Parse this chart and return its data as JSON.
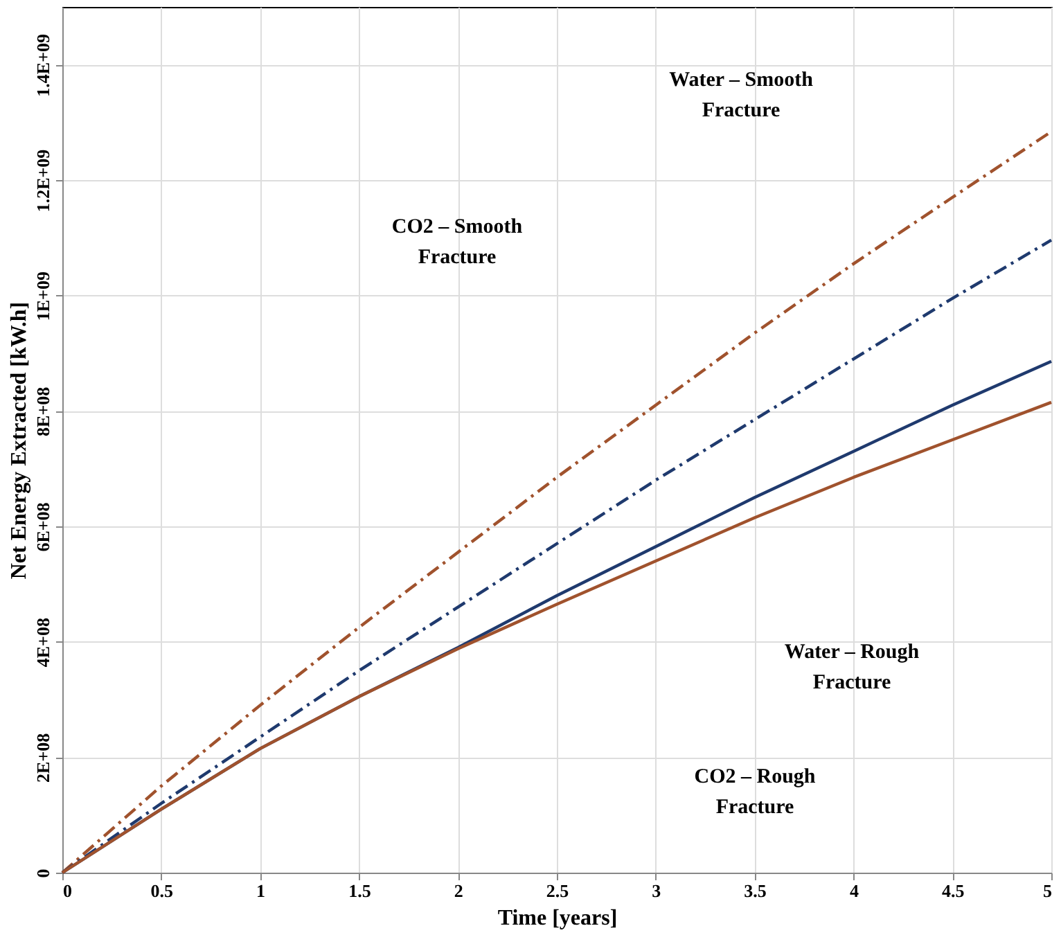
{
  "chart_data": {
    "type": "line",
    "xlabel": "Time [years]",
    "ylabel": "Net Energy Extracted [kW.h]",
    "x": [
      0,
      0.5,
      1,
      1.5,
      2,
      2.5,
      3,
      3.5,
      4,
      4.5,
      5
    ],
    "series": [
      {
        "color": "#a0522d",
        "line_style": "dashed",
        "values": [
          0,
          150000000,
          290000000,
          425000000,
          555000000,
          685000000,
          810000000,
          935000000,
          1055000000,
          1170000000,
          1284000000
        ]
      },
      {
        "color": "#1f3a6e",
        "line_style": "dashed",
        "values": [
          0,
          120000000,
          235000000,
          350000000,
          460000000,
          570000000,
          680000000,
          785000000,
          890000000,
          995000000,
          1096000000
        ]
      },
      {
        "color": "#1f3a6e",
        "line_style": "solid",
        "values": [
          0,
          110000000,
          215000000,
          305000000,
          390000000,
          480000000,
          565000000,
          650000000,
          730000000,
          810000000,
          886000000
        ]
      },
      {
        "color": "#a0522d",
        "line_style": "solid",
        "values": [
          0,
          110000000,
          215000000,
          305000000,
          388000000,
          465000000,
          540000000,
          615000000,
          685000000,
          750000000,
          815000000
        ]
      }
    ],
    "xlim": [
      0,
      5
    ],
    "xticks": [
      0,
      0.5,
      1,
      1.5,
      2,
      2.5,
      3,
      3.5,
      4,
      4.5,
      5
    ],
    "ylim": [
      0,
      1500000000
    ],
    "yticks": [
      {
        "value": 0,
        "label": "0"
      },
      {
        "value": 200000000,
        "label": "2E+08"
      },
      {
        "value": 400000000,
        "label": "4E+08"
      },
      {
        "value": 600000000,
        "label": "6E+08"
      },
      {
        "value": 800000000,
        "label": "8E+08"
      },
      {
        "value": 1000000000,
        "label": "1E+09"
      },
      {
        "value": 1200000000,
        "label": "1.2E+09"
      },
      {
        "value": 1400000000,
        "label": "1.4E+09"
      }
    ],
    "annotations": [
      "Water – Smooth Fracture",
      "CO2 – Smooth Fracture",
      "Water – Rough Fracture",
      "CO2 – Rough Fracture"
    ],
    "grid": true,
    "marker": "none"
  }
}
